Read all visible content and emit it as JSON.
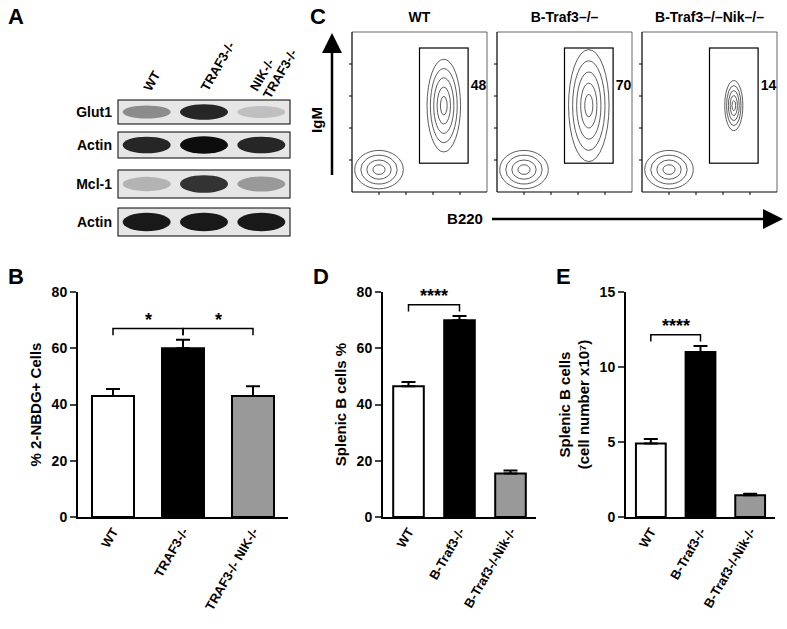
{
  "western_blot": {
    "panel_label": "A",
    "lanes": [
      "WT",
      "TRAF3-/-",
      "NIK-/-\nTRAF3-/-"
    ],
    "rows": [
      {
        "name": "Glut1",
        "intensity": [
          0.45,
          0.85,
          0.25
        ]
      },
      {
        "name": "Actin",
        "intensity": [
          0.85,
          0.95,
          0.85
        ]
      },
      {
        "name": "Mcl-1",
        "intensity": [
          0.3,
          0.8,
          0.4
        ]
      },
      {
        "name": "Actin",
        "intensity": [
          0.9,
          0.9,
          0.9
        ]
      }
    ]
  },
  "chart_data": [
    {
      "type": "bar",
      "panel_label": "B",
      "y_label": "% 2-NBDG+ Cells",
      "categories": [
        "WT",
        "TRAF3-/-",
        "TRAF3-/- NIK-/-"
      ],
      "values": [
        43,
        60,
        43
      ],
      "errors": [
        2.5,
        3,
        3.5
      ],
      "colors": [
        "#ffffff",
        "#000000",
        "#999999"
      ],
      "ylim": [
        0,
        80
      ],
      "yticks": [
        0,
        20,
        40,
        60,
        80
      ],
      "grid": false,
      "significance": [
        {
          "from": 0,
          "to": 1,
          "label": "*"
        },
        {
          "from": 1,
          "to": 2,
          "label": "*"
        }
      ]
    },
    {
      "type": "flow",
      "panel_label": "C",
      "xlabel": "B220",
      "ylabel": "IgM",
      "tick_labels": false,
      "panels": [
        {
          "title": "WT",
          "gate_percent": 48
        },
        {
          "title": "B-Traf3–/–",
          "gate_percent": 70
        },
        {
          "title": "B-Traf3–/–Nik–/–",
          "gate_percent": 14
        }
      ]
    },
    {
      "type": "bar",
      "panel_label": "D",
      "y_label": "Splenic B cells %",
      "categories": [
        "WT",
        "B-Traf3-/-",
        "B-Traf3-/-Nik-/-"
      ],
      "values": [
        46.5,
        70,
        15.5
      ],
      "errors": [
        1.5,
        1.5,
        1
      ],
      "colors": [
        "#ffffff",
        "#000000",
        "#999999"
      ],
      "ylim": [
        0,
        80
      ],
      "yticks": [
        0,
        20,
        40,
        60,
        80
      ],
      "grid": false,
      "significance": [
        {
          "from": 0,
          "to": 1,
          "label": "****"
        }
      ]
    },
    {
      "type": "bar",
      "panel_label": "E",
      "y_label": "Splenic B cells\n(cell number x10⁷)",
      "categories": [
        "WT",
        "B-Traf3-/-",
        "B-Traf3-/-Nik-/-"
      ],
      "values": [
        4.9,
        11,
        1.45
      ],
      "errors": [
        0.3,
        0.4,
        0.1
      ],
      "colors": [
        "#ffffff",
        "#000000",
        "#999999"
      ],
      "ylim": [
        0,
        15
      ],
      "yticks": [
        0,
        5,
        10,
        15
      ],
      "grid": false,
      "significance": [
        {
          "from": 0,
          "to": 1,
          "label": "****"
        }
      ]
    }
  ]
}
